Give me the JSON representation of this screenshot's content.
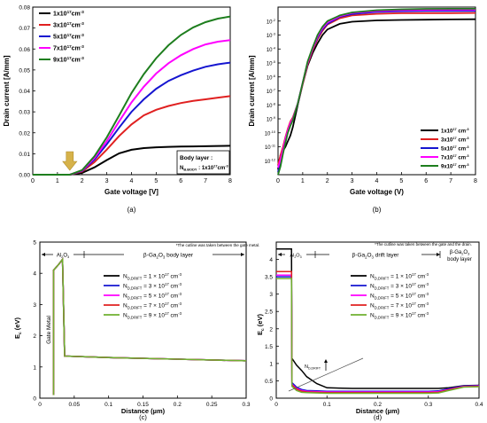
{
  "chart_data": [
    {
      "id": "a",
      "type": "line",
      "panel_label": "(a)",
      "xlabel": "Gate voltage [V]",
      "ylabel": "Drain current [A/mm]",
      "xlim": [
        0,
        8
      ],
      "ylim": [
        0,
        0.08
      ],
      "xticks": [
        "0",
        "1",
        "2",
        "3",
        "4",
        "5",
        "6",
        "7",
        "8"
      ],
      "yticks": [
        "0.00",
        "0.01",
        "0.02",
        "0.03",
        "0.04",
        "0.05",
        "0.06",
        "0.07",
        "0.08"
      ],
      "legend_position": "top-left",
      "note": {
        "line1": "Body layer :",
        "line2": "N",
        "sub": "B.BODY",
        "line3": " : 1x10",
        "sup": "17",
        "unit": "cm",
        "unit_sup": "-3"
      },
      "arrow_x": 1.5,
      "x": [
        0,
        1,
        1.5,
        2,
        2.5,
        3,
        3.5,
        4,
        4.5,
        5,
        5.5,
        6,
        6.5,
        7,
        7.5,
        8
      ],
      "series": [
        {
          "name": "1x10",
          "sup": "17",
          "unit": "cm",
          "unit_sup": "-3",
          "color": "#000000",
          "values": [
            0,
            0,
            0,
            0.0009,
            0.0035,
            0.007,
            0.0102,
            0.0119,
            0.0127,
            0.0131,
            0.0133,
            0.0134,
            0.0135,
            0.0136,
            0.0137,
            0.0138
          ]
        },
        {
          "name": "3x10",
          "sup": "17",
          "unit": "cm",
          "unit_sup": "-3",
          "color": "#e02020",
          "values": [
            0,
            0,
            0,
            0.0015,
            0.006,
            0.012,
            0.0185,
            0.024,
            0.0283,
            0.031,
            0.0328,
            0.0342,
            0.0352,
            0.036,
            0.0368,
            0.0375
          ]
        },
        {
          "name": "5x10",
          "sup": "17",
          "unit": "cm",
          "unit_sup": "-3",
          "color": "#1515d0",
          "values": [
            0,
            0,
            0,
            0.0018,
            0.0072,
            0.0145,
            0.0225,
            0.03,
            0.036,
            0.041,
            0.0448,
            0.0475,
            0.0497,
            0.0515,
            0.0527,
            0.0535
          ]
        },
        {
          "name": "7x10",
          "sup": "17",
          "unit": "cm",
          "unit_sup": "-3",
          "color": "#ff00ff",
          "values": [
            0,
            0,
            0,
            0.002,
            0.008,
            0.016,
            0.0255,
            0.0345,
            0.042,
            0.0483,
            0.0532,
            0.057,
            0.06,
            0.0622,
            0.0635,
            0.0642
          ]
        },
        {
          "name": "9x10",
          "sup": "17",
          "unit": "cm",
          "unit_sup": "-3",
          "color": "#1e7e1e",
          "values": [
            0,
            0,
            0,
            0.0022,
            0.0088,
            0.0178,
            0.0283,
            0.039,
            0.048,
            0.0556,
            0.0618,
            0.0667,
            0.0703,
            0.0728,
            0.0745,
            0.0755
          ]
        }
      ]
    },
    {
      "id": "b",
      "type": "line",
      "panel_label": "(b)",
      "xlabel": "Gate voltage (V)",
      "ylabel": "Drain current [A/mm]",
      "yscale": "log",
      "xlim": [
        0,
        8
      ],
      "ylim_exp": [
        -13,
        -1
      ],
      "xticks": [
        "0",
        "1",
        "2",
        "3",
        "4",
        "5",
        "6",
        "7",
        "8"
      ],
      "yticks": [
        {
          "base": "10",
          "exp": "-12"
        },
        {
          "base": "10",
          "exp": "-11"
        },
        {
          "base": "10",
          "exp": "-10"
        },
        {
          "base": "10",
          "exp": "-9"
        },
        {
          "base": "10",
          "exp": "-8"
        },
        {
          "base": "10",
          "exp": "-7"
        },
        {
          "base": "10",
          "exp": "-6"
        },
        {
          "base": "10",
          "exp": "-5"
        },
        {
          "base": "10",
          "exp": "-4"
        },
        {
          "base": "10",
          "exp": "-3"
        },
        {
          "base": "10",
          "exp": "-2"
        }
      ],
      "legend_position": "bottom-right",
      "x": [
        0,
        0.1,
        0.2,
        0.3,
        0.4,
        0.5,
        0.6,
        0.8,
        1.0,
        1.2,
        1.4,
        1.6,
        1.8,
        2.0,
        2.5,
        3,
        4,
        5,
        6,
        7,
        8
      ],
      "series": [
        {
          "name": "1x10",
          "sup": "17",
          "unit": "cm",
          "unit_sup": "-3",
          "color": "#000000",
          "log_values": [
            -12.6,
            -11.6,
            -11.3,
            -11.0,
            -10.6,
            -10.2,
            -9.6,
            -8.0,
            -6.5,
            -5.2,
            -4.3,
            -3.6,
            -3.0,
            -2.6,
            -2.2,
            -2.05,
            -1.95,
            -1.92,
            -1.9,
            -1.88,
            -1.87
          ]
        },
        {
          "name": "3x10",
          "sup": "17",
          "unit": "cm",
          "unit_sup": "-3",
          "color": "#e02020",
          "log_values": [
            -12.3,
            -11.6,
            -11.0,
            -10.3,
            -9.7,
            -9.2,
            -8.9,
            -7.9,
            -6.5,
            -5.1,
            -4.1,
            -3.3,
            -2.7,
            -2.25,
            -1.8,
            -1.6,
            -1.48,
            -1.44,
            -1.43,
            -1.43,
            -1.42
          ]
        },
        {
          "name": "5x10",
          "sup": "17",
          "unit": "cm",
          "unit_sup": "-3",
          "color": "#1515d0",
          "log_values": [
            -12.8,
            -12.2,
            -11.4,
            -10.6,
            -9.9,
            -9.4,
            -9.0,
            -7.9,
            -6.4,
            -5.0,
            -4.0,
            -3.2,
            -2.6,
            -2.2,
            -1.7,
            -1.5,
            -1.35,
            -1.3,
            -1.28,
            -1.27,
            -1.27
          ]
        },
        {
          "name": "7x10",
          "sup": "17",
          "unit": "cm",
          "unit_sup": "-3",
          "color": "#ff00ff",
          "log_values": [
            -12.5,
            -11.9,
            -11.2,
            -10.4,
            -9.8,
            -9.3,
            -9.0,
            -7.9,
            -6.4,
            -5.0,
            -4.0,
            -3.1,
            -2.5,
            -2.1,
            -1.65,
            -1.42,
            -1.27,
            -1.22,
            -1.2,
            -1.19,
            -1.19
          ]
        },
        {
          "name": "9x10",
          "sup": "17",
          "unit": "cm",
          "unit_sup": "-3",
          "color": "#1e7e1e",
          "log_values": [
            -13.0,
            -12.4,
            -11.5,
            -10.7,
            -10.0,
            -9.5,
            -9.1,
            -7.9,
            -6.4,
            -4.9,
            -3.9,
            -3.0,
            -2.4,
            -2.0,
            -1.6,
            -1.38,
            -1.22,
            -1.16,
            -1.13,
            -1.12,
            -1.12
          ]
        }
      ]
    },
    {
      "id": "c",
      "type": "line",
      "panel_label": "(c)",
      "xlabel": "Distance (µm)",
      "ylabel": "E",
      "ylabel_sub": "c",
      "ylabel_unit": " (eV)",
      "xlim": [
        0,
        0.3
      ],
      "ylim": [
        0,
        5
      ],
      "xticks": [
        "0",
        "0.05",
        "0.1",
        "0.15",
        "0.2",
        "0.25",
        "0.3"
      ],
      "yticks": [
        "0",
        "1",
        "2",
        "3",
        "4",
        "5"
      ],
      "legend_position": "top-center",
      "note": "*The cutline was taken between the gate metal.",
      "region_left": "Al",
      "region_left_sub": "2",
      "region_left_mid": "O",
      "region_left_sub2": "3",
      "region_right": "β-Ga",
      "region_right_sub": "2",
      "region_right_mid": "O",
      "region_right_sub2": "3",
      "region_right_tail": " body layer",
      "gate_label": "Gate Metal",
      "x": [
        0.02,
        0.02,
        0.028,
        0.033,
        0.036,
        0.1,
        0.2,
        0.3
      ],
      "values": [
        0.1,
        4.1,
        4.3,
        4.45,
        1.35,
        1.3,
        1.25,
        1.2
      ],
      "series": [
        {
          "name": "N",
          "sub": "D,DRIFT",
          "value": " = 1 × 10",
          "sup": "17",
          "unit": " cm",
          "unit_sup": "-3",
          "color": "#000000"
        },
        {
          "name": "N",
          "sub": "D,DRIFT",
          "value": " = 3 × 10",
          "sup": "17",
          "unit": " cm",
          "unit_sup": "-3",
          "color": "#1515d0"
        },
        {
          "name": "N",
          "sub": "D,DRIFT",
          "value": " = 5 × 10",
          "sup": "17",
          "unit": " cm",
          "unit_sup": "-3",
          "color": "#ff00ff"
        },
        {
          "name": "N",
          "sub": "D,DRIFT",
          "value": " = 7 × 10",
          "sup": "17",
          "unit": " cm",
          "unit_sup": "-3",
          "color": "#e02020"
        },
        {
          "name": "N",
          "sub": "D,DRIFT",
          "value": " = 9 × 10",
          "sup": "17",
          "unit": " cm",
          "unit_sup": "-3",
          "color": "#6fb030"
        }
      ]
    },
    {
      "id": "d",
      "type": "line",
      "panel_label": "(d)",
      "xlabel": "Distance (µm)",
      "ylabel": "E",
      "ylabel_sub": "c",
      "ylabel_unit": " (eV)",
      "xlim": [
        0,
        0.4
      ],
      "ylim": [
        0,
        4.5
      ],
      "xticks": [
        "0",
        "0.1",
        "0.2",
        "0.3",
        "0.4"
      ],
      "yticks": [
        "0",
        "0.5",
        "1",
        "1.5",
        "2",
        "2.5",
        "3",
        "3.5",
        "4"
      ],
      "legend_position": "top-center",
      "note": "*The cutline was taken between the gate and the drain.",
      "region_left": "Al",
      "region_left_sub": "2",
      "region_left_mid": "O",
      "region_left_sub2": "3",
      "region_mid": "β-Ga",
      "region_mid_sub": "2",
      "region_mid_mid": "O",
      "region_mid_sub2": "3",
      "region_mid_tail": " drift layer",
      "region_right_line1": "β-Ga",
      "region_right_sub": "2",
      "region_right_mid": "O",
      "region_right_sub2": "3",
      "region_right_line2": "body layer",
      "annotation": "N",
      "annotation_sub": "D,DRIFT",
      "x": [
        0,
        0.02,
        0.03,
        0.031,
        0.04,
        0.05,
        0.06,
        0.08,
        0.1,
        0.15,
        0.2,
        0.25,
        0.3,
        0.32,
        0.34,
        0.37,
        0.4
      ],
      "series": [
        {
          "name": "N",
          "sub": "D,DRIFT",
          "value": " = 1 × 10",
          "sup": "17",
          "unit": " cm",
          "unit_sup": "-3",
          "color": "#000000",
          "values": [
            4.3,
            4.3,
            4.3,
            1.15,
            0.95,
            0.8,
            0.62,
            0.42,
            0.3,
            0.28,
            0.28,
            0.28,
            0.28,
            0.28,
            0.3,
            0.36,
            0.37
          ]
        },
        {
          "name": "N",
          "sub": "D,DRIFT",
          "value": " = 3 × 10",
          "sup": "17",
          "unit": " cm",
          "unit_sup": "-3",
          "color": "#1515d0",
          "values": [
            3.5,
            3.5,
            3.5,
            0.45,
            0.32,
            0.25,
            0.22,
            0.21,
            0.2,
            0.2,
            0.2,
            0.2,
            0.2,
            0.21,
            0.27,
            0.35,
            0.36
          ]
        },
        {
          "name": "N",
          "sub": "D,DRIFT",
          "value": " = 5 × 10",
          "sup": "17",
          "unit": " cm",
          "unit_sup": "-3",
          "color": "#ff00ff",
          "values": [
            3.55,
            3.55,
            3.55,
            0.4,
            0.28,
            0.22,
            0.2,
            0.19,
            0.18,
            0.18,
            0.18,
            0.18,
            0.18,
            0.19,
            0.25,
            0.34,
            0.35
          ]
        },
        {
          "name": "N",
          "sub": "D,DRIFT",
          "value": " = 7 × 10",
          "sup": "17",
          "unit": " cm",
          "unit_sup": "-3",
          "color": "#e02020",
          "values": [
            3.65,
            3.65,
            3.65,
            0.38,
            0.26,
            0.2,
            0.18,
            0.17,
            0.16,
            0.16,
            0.16,
            0.16,
            0.16,
            0.17,
            0.24,
            0.33,
            0.34
          ]
        },
        {
          "name": "N",
          "sub": "D,DRIFT",
          "value": " = 9 × 10",
          "sup": "17",
          "unit": " cm",
          "unit_sup": "-3",
          "color": "#6fb030",
          "values": [
            3.45,
            3.45,
            3.45,
            0.34,
            0.22,
            0.17,
            0.16,
            0.15,
            0.14,
            0.14,
            0.14,
            0.14,
            0.14,
            0.15,
            0.22,
            0.32,
            0.33
          ]
        }
      ]
    }
  ]
}
